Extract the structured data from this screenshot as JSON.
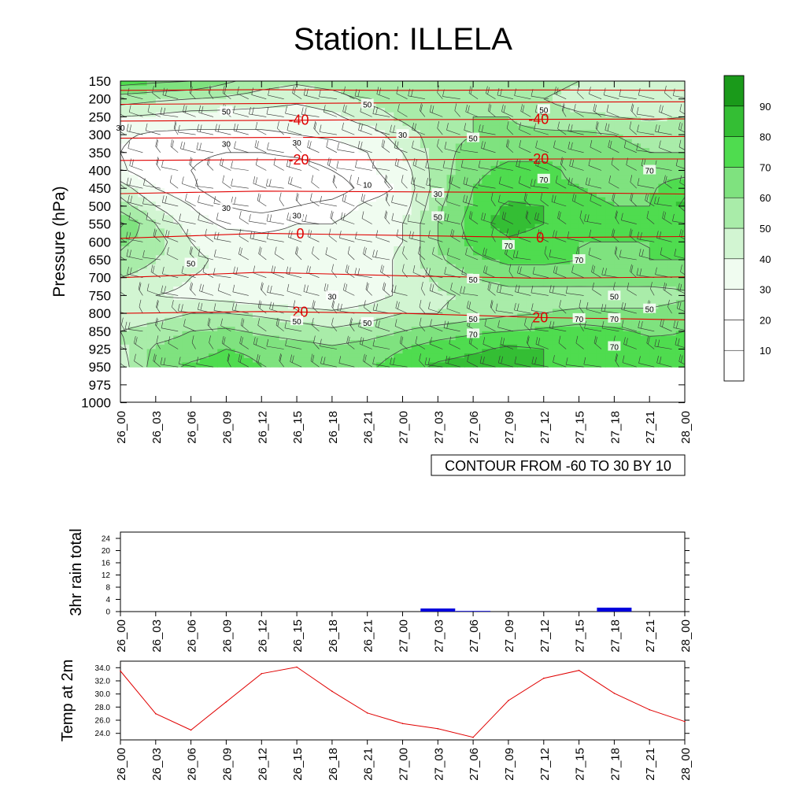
{
  "title": "Station: ILLELA",
  "colors": {
    "fill_levels": [
      "#ffffff",
      "#ffffff",
      "#ffffff",
      "#f0fcf0",
      "#d2f5d2",
      "#a9eca9",
      "#7fe27f",
      "#4fdc4f",
      "#34be34",
      "#1a9a1a"
    ],
    "contour_line": "#444444",
    "temp_contour": "#e00000",
    "rain_bar": "#0000dd",
    "temp_line": "#e00000"
  },
  "chart_data": [
    {
      "type": "filled-contour",
      "name": "time-pressure cross section",
      "ylabel": "Pressure (hPa)",
      "yticks": [
        150,
        200,
        250,
        300,
        350,
        400,
        450,
        500,
        550,
        600,
        650,
        700,
        750,
        800,
        850,
        925,
        950,
        975,
        1000
      ],
      "xticks": [
        "26_00",
        "26_03",
        "26_06",
        "26_09",
        "26_12",
        "26_15",
        "26_18",
        "26_21",
        "27_00",
        "27_03",
        "27_06",
        "27_09",
        "27_12",
        "27_15",
        "27_18",
        "27_21",
        "28_00"
      ],
      "info_label": "CONTOUR FROM -60 TO 30 BY 10",
      "colorbar": {
        "labels": [
          "10",
          "20",
          "30",
          "40",
          "50",
          "60",
          "70",
          "80",
          "90"
        ],
        "levels": [
          10,
          20,
          30,
          40,
          50,
          60,
          70,
          80,
          90
        ]
      },
      "field_x": [
        "26_00",
        "26_03",
        "26_06",
        "26_09",
        "26_12",
        "26_15",
        "26_18",
        "26_21",
        "27_00",
        "27_03",
        "27_06",
        "27_09",
        "27_12",
        "27_15",
        "27_18",
        "27_21",
        "28_00"
      ],
      "field_p": [
        150,
        200,
        250,
        300,
        350,
        400,
        450,
        500,
        550,
        600,
        650,
        700,
        750,
        800,
        850,
        925,
        950
      ],
      "field_values": [
        [
          75,
          72,
          70,
          62,
          55,
          52,
          55,
          60,
          58,
          55,
          55,
          58,
          55,
          50,
          48,
          48,
          50
        ],
        [
          55,
          52,
          50,
          48,
          45,
          42,
          45,
          52,
          55,
          55,
          52,
          52,
          50,
          45,
          45,
          45,
          48
        ],
        [
          40,
          38,
          35,
          35,
          35,
          35,
          38,
          45,
          52,
          58,
          60,
          60,
          55,
          52,
          50,
          48,
          50
        ],
        [
          32,
          28,
          28,
          28,
          28,
          30,
          32,
          35,
          45,
          55,
          60,
          62,
          62,
          62,
          60,
          58,
          58
        ],
        [
          30,
          22,
          22,
          20,
          20,
          22,
          25,
          30,
          40,
          55,
          65,
          68,
          68,
          65,
          62,
          60,
          60
        ],
        [
          32,
          22,
          20,
          15,
          15,
          15,
          20,
          28,
          35,
          55,
          68,
          72,
          72,
          68,
          65,
          65,
          65
        ],
        [
          45,
          30,
          22,
          12,
          10,
          10,
          12,
          25,
          32,
          55,
          70,
          75,
          72,
          70,
          68,
          68,
          78
        ],
        [
          55,
          40,
          30,
          20,
          15,
          20,
          25,
          32,
          35,
          58,
          72,
          82,
          80,
          72,
          70,
          70,
          82
        ],
        [
          72,
          50,
          35,
          28,
          28,
          30,
          30,
          35,
          40,
          60,
          75,
          85,
          80,
          72,
          70,
          70,
          75
        ],
        [
          62,
          55,
          40,
          35,
          32,
          32,
          32,
          35,
          40,
          60,
          72,
          78,
          75,
          70,
          70,
          70,
          72
        ],
        [
          58,
          50,
          42,
          38,
          35,
          32,
          32,
          35,
          42,
          58,
          68,
          72,
          72,
          70,
          68,
          70,
          70
        ],
        [
          50,
          45,
          40,
          38,
          35,
          32,
          32,
          35,
          42,
          52,
          60,
          65,
          65,
          65,
          65,
          65,
          65
        ],
        [
          45,
          40,
          38,
          35,
          32,
          30,
          30,
          35,
          42,
          48,
          52,
          55,
          55,
          55,
          55,
          55,
          58
        ],
        [
          42,
          45,
          50,
          50,
          48,
          45,
          42,
          45,
          50,
          50,
          55,
          58,
          60,
          62,
          62,
          62,
          65
        ],
        [
          50,
          55,
          60,
          62,
          58,
          55,
          52,
          55,
          60,
          65,
          68,
          70,
          72,
          75,
          72,
          68,
          70
        ],
        [
          48,
          62,
          65,
          70,
          68,
          65,
          62,
          65,
          70,
          75,
          78,
          82,
          80,
          78,
          78,
          75,
          72
        ],
        [
          45,
          65,
          72,
          75,
          70,
          68,
          65,
          68,
          75,
          82,
          85,
          85,
          80,
          78,
          78,
          75,
          72
        ]
      ],
      "temperature_contours": [
        {
          "p": [
            176,
            174,
            176,
            175,
            176
          ],
          "label": ""
        },
        {
          "p": [
            215,
            213,
            211,
            209,
            208
          ],
          "label": ""
        },
        {
          "p": [
            262,
            260,
            258,
            257,
            256
          ],
          "label": "-40"
        },
        {
          "p": [
            310,
            308,
            307,
            306,
            305
          ],
          "label": ""
        },
        {
          "p": [
            372,
            370,
            370,
            368,
            368
          ],
          "label": "-20"
        },
        {
          "p": [
            465,
            458,
            460,
            462,
            466
          ],
          "label": ""
        },
        {
          "p": [
            590,
            576,
            582,
            588,
            585
          ],
          "label": "0"
        },
        {
          "p": [
            700,
            685,
            695,
            702,
            698
          ],
          "label": ""
        },
        {
          "p": [
            800,
            795,
            800,
            812,
            818
          ],
          "label": "20"
        }
      ],
      "contour_labels": [
        {
          "text": "50",
          "x": "26_09",
          "p": 235
        },
        {
          "text": "50",
          "x": "26_21",
          "p": 215
        },
        {
          "text": "50",
          "x": "27_12",
          "p": 230
        },
        {
          "text": "30",
          "x": "26_00",
          "p": 280
        },
        {
          "text": "30",
          "x": "26_09",
          "p": 325
        },
        {
          "text": "30",
          "x": "26_15",
          "p": 322
        },
        {
          "text": "30",
          "x": "27_00",
          "p": 300
        },
        {
          "text": "50",
          "x": "27_06",
          "p": 310
        },
        {
          "text": "10",
          "x": "26_21",
          "p": 440
        },
        {
          "text": "70",
          "x": "27_12",
          "p": 425
        },
        {
          "text": "70",
          "x": "27_21",
          "p": 400
        },
        {
          "text": "30",
          "x": "26_09",
          "p": 505
        },
        {
          "text": "30",
          "x": "26_15",
          "p": 525
        },
        {
          "text": "30",
          "x": "27_03",
          "p": 465
        },
        {
          "text": "50",
          "x": "27_03",
          "p": 530
        },
        {
          "text": "70",
          "x": "27_09",
          "p": 610
        },
        {
          "text": "50",
          "x": "26_06",
          "p": 660
        },
        {
          "text": "70",
          "x": "27_15",
          "p": 650
        },
        {
          "text": "50",
          "x": "27_06",
          "p": 705
        },
        {
          "text": "30",
          "x": "26_18",
          "p": 752
        },
        {
          "text": "50",
          "x": "27_18",
          "p": 752
        },
        {
          "text": "50",
          "x": "27_21",
          "p": 788
        },
        {
          "text": "50",
          "x": "26_15",
          "p": 822
        },
        {
          "text": "50",
          "x": "26_21",
          "p": 826
        },
        {
          "text": "50",
          "x": "27_06",
          "p": 815
        },
        {
          "text": "70",
          "x": "27_18",
          "p": 815
        },
        {
          "text": "70",
          "x": "27_15",
          "p": 815
        },
        {
          "text": "70",
          "x": "27_06",
          "p": 862
        },
        {
          "text": "70",
          "x": "27_18",
          "p": 915
        }
      ]
    },
    {
      "type": "bar",
      "name": "3hr rain total",
      "ylabel": "3hr rain total",
      "ylim": [
        0,
        24
      ],
      "yticks": [
        0,
        4,
        8,
        12,
        16,
        20,
        24
      ],
      "xticks": [
        "26_00",
        "26_03",
        "26_06",
        "26_09",
        "26_12",
        "26_15",
        "26_18",
        "26_21",
        "27_00",
        "27_03",
        "27_06",
        "27_09",
        "27_12",
        "27_15",
        "27_18",
        "27_21",
        "28_00"
      ],
      "values": [
        0,
        0,
        0,
        0,
        0,
        0,
        0,
        0,
        0,
        1.0,
        0.2,
        0,
        0,
        0,
        1.3,
        0,
        0
      ]
    },
    {
      "type": "line",
      "name": "Temp at 2m",
      "ylabel": "Temp at 2m",
      "ylim": [
        23.0,
        35.0
      ],
      "yticks": [
        "24.0",
        "26.0",
        "28.0",
        "30.0",
        "32.0",
        "34.0"
      ],
      "xticks": [
        "26_00",
        "26_03",
        "26_06",
        "26_09",
        "26_12",
        "26_15",
        "26_18",
        "26_21",
        "27_00",
        "27_03",
        "27_06",
        "27_09",
        "27_12",
        "27_15",
        "27_18",
        "27_21",
        "28_00"
      ],
      "values": [
        33.5,
        27.0,
        24.5,
        28.8,
        33.1,
        34.1,
        30.4,
        27.1,
        25.5,
        24.7,
        23.4,
        29.0,
        32.4,
        33.6,
        30.1,
        27.6,
        25.8
      ]
    }
  ]
}
